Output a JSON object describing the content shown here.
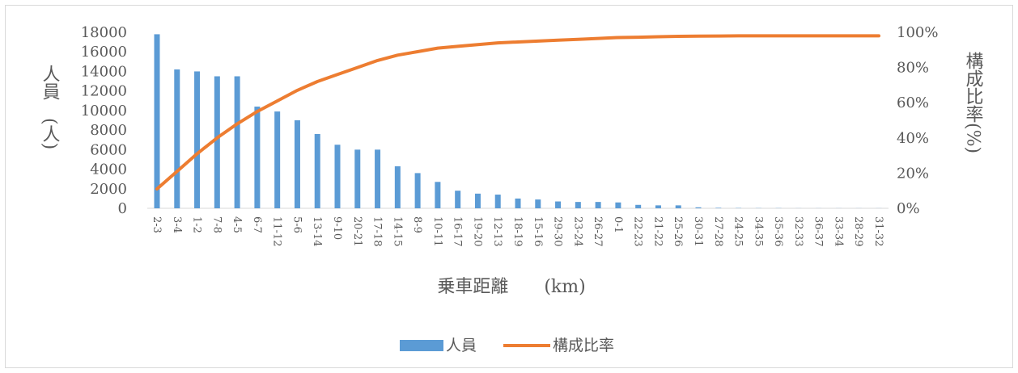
{
  "chart_data": {
    "type": "bar",
    "categories": [
      "2-3",
      "3-4",
      "1-2",
      "7-8",
      "4-5",
      "6-7",
      "11-12",
      "5-6",
      "13-14",
      "9-10",
      "20-21",
      "17-18",
      "14-15",
      "8-9",
      "10-11",
      "16-17",
      "19-20",
      "12-13",
      "18-19",
      "15-16",
      "29-30",
      "23-24",
      "26-27",
      "0-1",
      "22-23",
      "21-22",
      "25-26",
      "30-31",
      "27-28",
      "24-25",
      "34-35",
      "35-36",
      "32-33",
      "36-37",
      "33-34",
      "28-29",
      "31-32"
    ],
    "series": [
      {
        "name": "人員",
        "type": "bar",
        "axis": "left",
        "color": "#5b9bd5",
        "values": [
          17800,
          14200,
          14000,
          13500,
          13500,
          10400,
          9900,
          9000,
          7600,
          6500,
          6000,
          6000,
          4300,
          3600,
          2700,
          1800,
          1500,
          1400,
          1000,
          900,
          700,
          650,
          650,
          600,
          350,
          300,
          300,
          100,
          50,
          30,
          20,
          20,
          10,
          10,
          10,
          10,
          10
        ]
      },
      {
        "name": "構成比率",
        "type": "line",
        "axis": "right",
        "color": "#ed7d31",
        "values": [
          11,
          21,
          31,
          40,
          48,
          55,
          61,
          67,
          72,
          76,
          80,
          84,
          87,
          89,
          91,
          92,
          93,
          94,
          94.5,
          95,
          95.5,
          96,
          96.5,
          97,
          97.2,
          97.5,
          97.7,
          97.8,
          97.9,
          98,
          98,
          98,
          98,
          98,
          98,
          98,
          98
        ]
      }
    ],
    "xlabel": "乗車距離　　(km)",
    "ylabel": "人員　(人)",
    "ylabel_right": "構成比率(%)",
    "ylim": [
      0,
      18000
    ],
    "yticks": [
      0,
      2000,
      4000,
      6000,
      8000,
      10000,
      12000,
      14000,
      16000,
      18000
    ],
    "ylim_right": [
      0,
      100
    ],
    "yticks_right": [
      "0%",
      "20%",
      "40%",
      "60%",
      "80%",
      "100%"
    ],
    "grid": false,
    "legend": "bottom"
  }
}
